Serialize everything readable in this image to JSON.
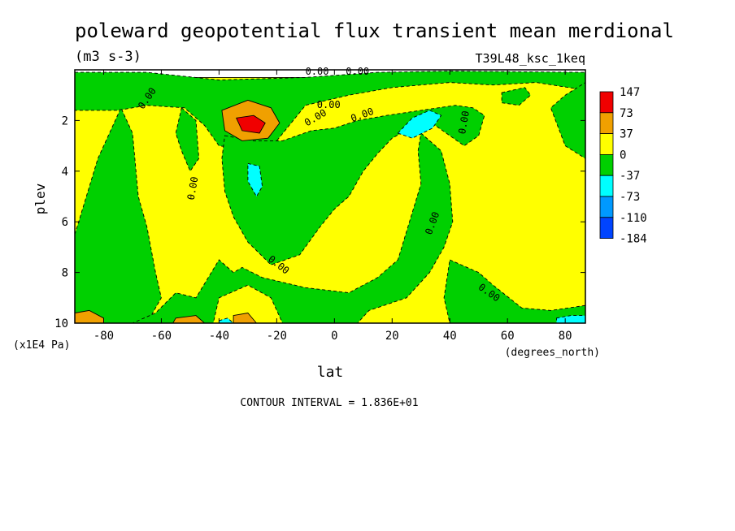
{
  "chart_data": {
    "type": "heatmap",
    "title": "poleward geopotential flux transient mean merdional",
    "units": "(m3 s-3)",
    "run_label": "T39L48_ksc_1keq",
    "xlabel": "lat",
    "xunits": "(degrees_north)",
    "ylabel": "plev",
    "yunits": "(x1E4 Pa)",
    "xlim": [
      -90,
      87
    ],
    "ylim": [
      0,
      10
    ],
    "y_inverted": true,
    "x_ticks": [
      -80,
      -60,
      -40,
      -20,
      0,
      20,
      40,
      60,
      80
    ],
    "y_ticks": [
      2,
      4,
      6,
      8,
      10
    ],
    "contour_interval_text": "CONTOUR INTERVAL = 1.836E+01",
    "contour_labels": [
      "0.00",
      "0.00",
      "0.00",
      "0.00",
      "0.00",
      "0.00",
      "0.00",
      "0.00",
      "0.00",
      "0.00",
      "0.00"
    ],
    "colorbar": {
      "levels": [
        "147",
        "73",
        "37",
        "0",
        "-37",
        "-73",
        "-110",
        "-184"
      ],
      "colors": [
        "#f00000",
        "#f0a000",
        "#ffff00",
        "#00d000",
        "#00ffff",
        "#0099ff",
        "#0044ff"
      ]
    },
    "regions": [
      {
        "sign": "positive",
        "level": 2,
        "color": "#ffff00",
        "points": [
          [
            -90,
            0.3
          ],
          [
            87,
            0.3
          ],
          [
            87,
            10
          ],
          [
            -90,
            10
          ]
        ]
      },
      {
        "sign": "negative",
        "level": -1,
        "color": "#00d000",
        "points": [
          [
            -90,
            0.1
          ],
          [
            -65,
            0.1
          ],
          [
            -40,
            0.4
          ],
          [
            -10,
            0.3
          ],
          [
            15,
            0.1
          ],
          [
            40,
            0.05
          ],
          [
            87,
            0.1
          ],
          [
            87,
            0.8
          ],
          [
            70,
            0.5
          ],
          [
            55,
            0.6
          ],
          [
            40,
            0.5
          ],
          [
            20,
            0.7
          ],
          [
            5,
            1.0
          ],
          [
            -10,
            1.4
          ],
          [
            -20,
            2.8
          ],
          [
            -33,
            3.1
          ],
          [
            -40,
            3.0
          ],
          [
            -45,
            2.2
          ],
          [
            -52,
            1.5
          ],
          [
            -65,
            1.4
          ],
          [
            -75,
            1.6
          ],
          [
            -90,
            1.6
          ]
        ]
      },
      {
        "sign": "negative",
        "level": -1,
        "color": "#00d000",
        "points": [
          [
            -90,
            6.5
          ],
          [
            -82,
            3.5
          ],
          [
            -74,
            1.5
          ],
          [
            -70,
            2.5
          ],
          [
            -68,
            5.0
          ],
          [
            -65,
            6.2
          ],
          [
            -62,
            8.0
          ],
          [
            -60,
            9.0
          ],
          [
            -65,
            10
          ],
          [
            -90,
            10
          ]
        ]
      },
      {
        "sign": "negative",
        "level": -1,
        "color": "#00d000",
        "points": [
          [
            -53,
            1.5
          ],
          [
            -48,
            2.0
          ],
          [
            -47,
            3.5
          ],
          [
            -50,
            4.0
          ],
          [
            -53,
            3.2
          ],
          [
            -55,
            2.5
          ]
        ]
      },
      {
        "sign": "negative",
        "level": -1,
        "color": "#00d000",
        "points": [
          [
            -38,
            2.6
          ],
          [
            -28,
            2.8
          ],
          [
            -18,
            2.8
          ],
          [
            -8,
            2.4
          ],
          [
            0,
            2.3
          ],
          [
            8,
            2.0
          ],
          [
            18,
            1.8
          ],
          [
            30,
            1.6
          ],
          [
            42,
            1.4
          ],
          [
            48,
            1.5
          ],
          [
            52,
            1.8
          ],
          [
            50,
            2.6
          ],
          [
            45,
            3.0
          ],
          [
            35,
            2.2
          ],
          [
            28,
            2.2
          ],
          [
            20,
            2.7
          ],
          [
            15,
            3.3
          ],
          [
            10,
            4.0
          ],
          [
            5,
            5.0
          ],
          [
            0,
            5.5
          ],
          [
            -5,
            6.2
          ],
          [
            -12,
            7.3
          ],
          [
            -22,
            7.7
          ],
          [
            -30,
            6.8
          ],
          [
            -35,
            5.8
          ],
          [
            -38,
            4.8
          ],
          [
            -39,
            3.5
          ]
        ]
      },
      {
        "sign": "negative",
        "level": -1,
        "color": "#00d000",
        "points": [
          [
            30,
            2.5
          ],
          [
            37,
            3.2
          ],
          [
            40,
            4.5
          ],
          [
            41,
            6.0
          ],
          [
            38,
            7.0
          ],
          [
            33,
            8.0
          ],
          [
            25,
            9.0
          ],
          [
            12,
            9.5
          ],
          [
            8,
            10
          ],
          [
            -18,
            10
          ],
          [
            -22,
            9.0
          ],
          [
            -30,
            8.5
          ],
          [
            -40,
            9.0
          ],
          [
            -42,
            10
          ],
          [
            -70,
            10
          ],
          [
            -62,
            9.6
          ],
          [
            -55,
            8.8
          ],
          [
            -48,
            9.0
          ],
          [
            -40,
            7.5
          ],
          [
            -35,
            8.0
          ],
          [
            -32,
            7.8
          ],
          [
            -25,
            8.2
          ],
          [
            -10,
            8.6
          ],
          [
            5,
            8.8
          ],
          [
            15,
            8.2
          ],
          [
            22,
            7.5
          ],
          [
            26,
            6.0
          ],
          [
            30,
            4.5
          ],
          [
            29,
            3.2
          ]
        ]
      },
      {
        "sign": "negative",
        "level": -1,
        "color": "#00d000",
        "points": [
          [
            40,
            7.5
          ],
          [
            50,
            8.0
          ],
          [
            55,
            8.5
          ],
          [
            65,
            9.4
          ],
          [
            75,
            9.5
          ],
          [
            87,
            9.3
          ],
          [
            87,
            10
          ],
          [
            40,
            10
          ],
          [
            38,
            9.0
          ]
        ]
      },
      {
        "sign": "negative",
        "level": -1,
        "color": "#00d000",
        "points": [
          [
            87,
            0.5
          ],
          [
            87,
            3.5
          ],
          [
            80,
            3.0
          ],
          [
            75,
            1.5
          ],
          [
            80,
            1.0
          ]
        ]
      },
      {
        "sign": "negative",
        "level": -1,
        "color": "#00d000",
        "points": [
          [
            58,
            0.9
          ],
          [
            66,
            0.7
          ],
          [
            68,
            1.0
          ],
          [
            64,
            1.4
          ],
          [
            58,
            1.3
          ]
        ]
      },
      {
        "sign": "positive",
        "level": 3,
        "color": "#f0a000",
        "points": [
          [
            -39,
            1.6
          ],
          [
            -30,
            1.2
          ],
          [
            -22,
            1.5
          ],
          [
            -19,
            2.1
          ],
          [
            -23,
            2.7
          ],
          [
            -32,
            2.8
          ],
          [
            -38,
            2.4
          ]
        ]
      },
      {
        "sign": "positive",
        "level": 4,
        "color": "#f00000",
        "points": [
          [
            -34,
            1.9
          ],
          [
            -28,
            1.8
          ],
          [
            -24,
            2.1
          ],
          [
            -26,
            2.5
          ],
          [
            -32,
            2.4
          ]
        ]
      },
      {
        "sign": "negative",
        "level": -2,
        "color": "#00ffff",
        "points": [
          [
            -30,
            3.7
          ],
          [
            -26,
            3.8
          ],
          [
            -25,
            4.6
          ],
          [
            -27,
            5.0
          ],
          [
            -30,
            4.4
          ]
        ]
      },
      {
        "sign": "negative",
        "level": -2,
        "color": "#00ffff",
        "points": [
          [
            22,
            2.5
          ],
          [
            27,
            1.9
          ],
          [
            33,
            1.6
          ],
          [
            37,
            1.8
          ],
          [
            34,
            2.3
          ],
          [
            27,
            2.7
          ]
        ]
      },
      {
        "sign": "positive",
        "level": 3,
        "color": "#f0a000",
        "points": [
          [
            -90,
            9.6
          ],
          [
            -85,
            9.5
          ],
          [
            -80,
            9.8
          ],
          [
            -80,
            10
          ],
          [
            -90,
            10
          ]
        ]
      },
      {
        "sign": "positive",
        "level": 3,
        "color": "#f0a000",
        "points": [
          [
            -55,
            9.8
          ],
          [
            -48,
            9.7
          ],
          [
            -45,
            10
          ],
          [
            -56,
            10
          ]
        ]
      },
      {
        "sign": "positive",
        "level": 3,
        "color": "#f0a000",
        "points": [
          [
            -35,
            9.7
          ],
          [
            -30,
            9.6
          ],
          [
            -27,
            10
          ],
          [
            -35,
            10
          ]
        ]
      },
      {
        "sign": "negative",
        "level": -2,
        "color": "#00ffff",
        "points": [
          [
            -40,
            9.9
          ],
          [
            -37,
            9.8
          ],
          [
            -35,
            10
          ],
          [
            -40,
            10
          ]
        ]
      },
      {
        "sign": "negative",
        "level": -2,
        "color": "#00ffff",
        "points": [
          [
            77,
            9.8
          ],
          [
            82,
            9.7
          ],
          [
            87,
            9.7
          ],
          [
            87,
            10
          ],
          [
            77,
            10
          ]
        ]
      }
    ]
  }
}
